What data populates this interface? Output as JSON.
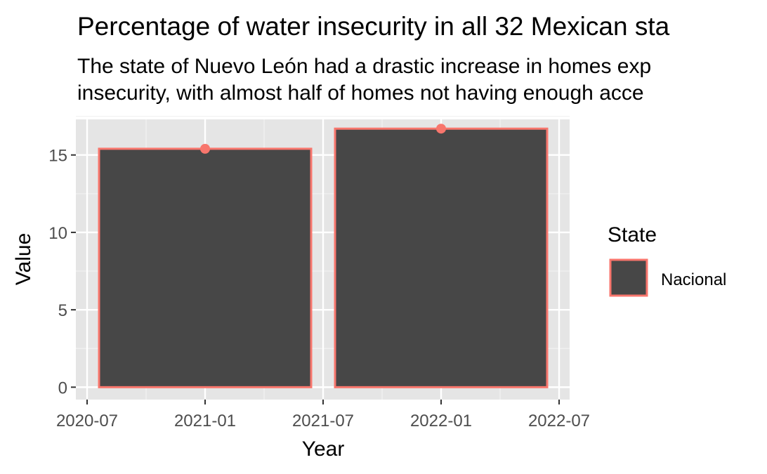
{
  "chart_data": {
    "type": "bar",
    "title": "Percentage of water insecurity in all 32 Mexican sta",
    "subtitle_lines": [
      "The state of Nuevo León had a drastic increase in homes exp",
      "insecurity, with almost half of homes not having enough acce"
    ],
    "xlabel": "Year",
    "ylabel": "Value",
    "x_ticks": [
      "2020-07",
      "2021-01",
      "2021-07",
      "2022-01",
      "2022-07"
    ],
    "y_ticks": [
      "0",
      "5",
      "10",
      "15"
    ],
    "ylim": [
      -0.8,
      17.3
    ],
    "categories": [
      "2021-01",
      "2022-01"
    ],
    "series": [
      {
        "name": "Nacional",
        "values": [
          15.4,
          16.7
        ],
        "fill": "#474747",
        "outline": "#F8766D"
      }
    ],
    "legend": {
      "title": "State",
      "position": "right",
      "items": [
        "Nacional"
      ]
    },
    "panel_background": "#E5E5E5",
    "grid": true
  }
}
